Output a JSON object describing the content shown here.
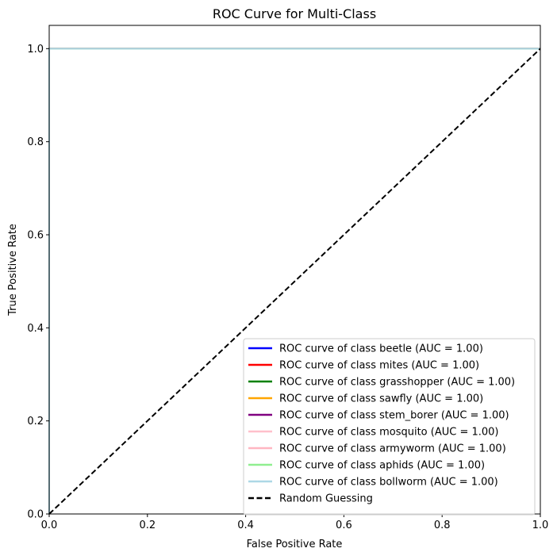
{
  "chart_data": {
    "type": "line",
    "title": "ROC Curve for Multi-Class",
    "xlabel": "False Positive Rate",
    "ylabel": "True Positive Rate",
    "xlim": [
      0.0,
      1.0
    ],
    "ylim": [
      0.0,
      1.05
    ],
    "xticks": [
      "0.0",
      "0.2",
      "0.4",
      "0.6",
      "0.8",
      "1.0"
    ],
    "yticks": [
      "0.0",
      "0.2",
      "0.4",
      "0.6",
      "0.8",
      "1.0"
    ],
    "grid": false,
    "legend_position": "lower-right",
    "series": [
      {
        "name": "ROC curve of class beetle (AUC = 1.00)",
        "color": "#0000ff",
        "style": "solid",
        "x": [
          0.0,
          0.0,
          1.0
        ],
        "y": [
          0.0,
          1.0,
          1.0
        ]
      },
      {
        "name": "ROC curve of class mites (AUC = 1.00)",
        "color": "#ff0000",
        "style": "solid",
        "x": [
          0.0,
          0.0,
          1.0
        ],
        "y": [
          0.0,
          1.0,
          1.0
        ]
      },
      {
        "name": "ROC curve of class grasshopper (AUC = 1.00)",
        "color": "#008000",
        "style": "solid",
        "x": [
          0.0,
          0.0,
          1.0
        ],
        "y": [
          0.0,
          1.0,
          1.0
        ]
      },
      {
        "name": "ROC curve of class sawfly (AUC = 1.00)",
        "color": "#ffa500",
        "style": "solid",
        "x": [
          0.0,
          0.0,
          1.0
        ],
        "y": [
          0.0,
          1.0,
          1.0
        ]
      },
      {
        "name": "ROC curve of class stem_borer (AUC = 1.00)",
        "color": "#800080",
        "style": "solid",
        "x": [
          0.0,
          0.0,
          1.0
        ],
        "y": [
          0.0,
          1.0,
          1.0
        ]
      },
      {
        "name": "ROC curve of class mosquito (AUC = 1.00)",
        "color": "#ffc0cb",
        "style": "solid",
        "x": [
          0.0,
          0.0,
          1.0
        ],
        "y": [
          0.0,
          1.0,
          1.0
        ]
      },
      {
        "name": "ROC curve of class armyworm (AUC = 1.00)",
        "color": "#ffb6c1",
        "style": "solid",
        "x": [
          0.0,
          0.0,
          1.0
        ],
        "y": [
          0.0,
          1.0,
          1.0
        ]
      },
      {
        "name": "ROC curve of class aphids (AUC = 1.00)",
        "color": "#90ee90",
        "style": "solid",
        "x": [
          0.0,
          0.0,
          1.0
        ],
        "y": [
          0.0,
          1.0,
          1.0
        ]
      },
      {
        "name": "ROC curve of class bollworm (AUC = 1.00)",
        "color": "#add8e6",
        "style": "solid",
        "x": [
          0.0,
          0.0,
          1.0
        ],
        "y": [
          0.0,
          1.0,
          1.0
        ]
      },
      {
        "name": "Random Guessing",
        "color": "#000000",
        "style": "dashed",
        "x": [
          0.0,
          1.0
        ],
        "y": [
          0.0,
          1.0
        ]
      }
    ]
  }
}
